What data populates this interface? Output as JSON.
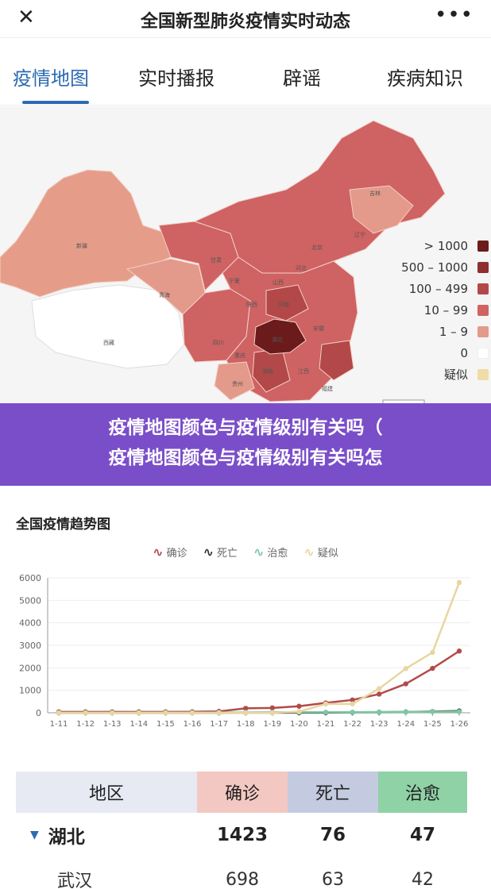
{
  "header": {
    "title": "全国新型肺炎疫情实时动态",
    "close_icon": "close-icon",
    "more_icon": "more-icon"
  },
  "tabs": [
    {
      "label": "疫情地图",
      "active": true
    },
    {
      "label": "实时播报",
      "active": false
    },
    {
      "label": "辟谣",
      "active": false
    },
    {
      "label": "疾病知识",
      "active": false
    }
  ],
  "map": {
    "legend": [
      {
        "label": "> 1000",
        "color": "#6b1b1b"
      },
      {
        "label": "500 – 1000",
        "color": "#8f2f2f"
      },
      {
        "label": "100 – 499",
        "color": "#b34848"
      },
      {
        "label": "10 – 99",
        "color": "#cf6262"
      },
      {
        "label": "1 – 9",
        "color": "#e39a8a"
      },
      {
        "label": "0",
        "color": "#ffffff"
      },
      {
        "label": "疑似",
        "color": "#efdca6"
      }
    ],
    "region_labels": [
      "新疆",
      "西藏",
      "青海",
      "甘肃",
      "四川",
      "湖北",
      "湖南",
      "江西",
      "贵州",
      "吉林",
      "辽宁",
      "山西",
      "河北",
      "北京",
      "河南",
      "安徽",
      "宁夏",
      "陕西",
      "重庆",
      "福建"
    ]
  },
  "overlay": {
    "line1": "疫情地图颜色与疫情级别有关吗（",
    "line2": "疫情地图颜色与疫情级别有关吗怎"
  },
  "trend": {
    "title": "全国疫情趋势图",
    "legend": [
      {
        "label": "确诊",
        "color": "#b34a4a"
      },
      {
        "label": "死亡",
        "color": "#333333"
      },
      {
        "label": "治愈",
        "color": "#7cc8a4"
      },
      {
        "label": "疑似",
        "color": "#e8d6a0"
      }
    ]
  },
  "chart_data": {
    "type": "line",
    "x": [
      "1-11",
      "1-12",
      "1-13",
      "1-14",
      "1-15",
      "1-16",
      "1-17",
      "1-18",
      "1-19",
      "1-20",
      "1-21",
      "1-22",
      "1-23",
      "1-24",
      "1-25",
      "1-26"
    ],
    "ylim": [
      0,
      6000
    ],
    "yticks": [
      0,
      1000,
      2000,
      3000,
      4000,
      5000,
      6000
    ],
    "grid": true,
    "legend_position": "top",
    "series": [
      {
        "name": "确诊",
        "color": "#b34a4a",
        "values": [
          41,
          41,
          41,
          41,
          41,
          45,
          62,
          198,
          218,
          291,
          440,
          571,
          830,
          1287,
          1975,
          2744
        ]
      },
      {
        "name": "死亡",
        "color": "#333333",
        "values": [
          1,
          1,
          1,
          1,
          2,
          2,
          2,
          3,
          4,
          6,
          9,
          17,
          25,
          41,
          56,
          80
        ]
      },
      {
        "name": "治愈",
        "color": "#7cc8a4",
        "values": [
          0,
          1,
          2,
          3,
          5,
          8,
          12,
          17,
          25,
          25,
          25,
          25,
          34,
          38,
          49,
          51
        ]
      },
      {
        "name": "疑似",
        "color": "#e8d6a0",
        "values": [
          0,
          0,
          0,
          0,
          0,
          0,
          0,
          0,
          0,
          54,
          393,
          393,
          1072,
          1965,
          2684,
          5794
        ]
      }
    ]
  },
  "table": {
    "headers": [
      "地区",
      "确诊",
      "死亡",
      "治愈"
    ],
    "rows": [
      {
        "region": "湖北",
        "confirmed": "1423",
        "death": "76",
        "cured": "47",
        "expanded": true
      },
      {
        "region": "武汉",
        "confirmed": "698",
        "death": "63",
        "cured": "42"
      }
    ]
  }
}
